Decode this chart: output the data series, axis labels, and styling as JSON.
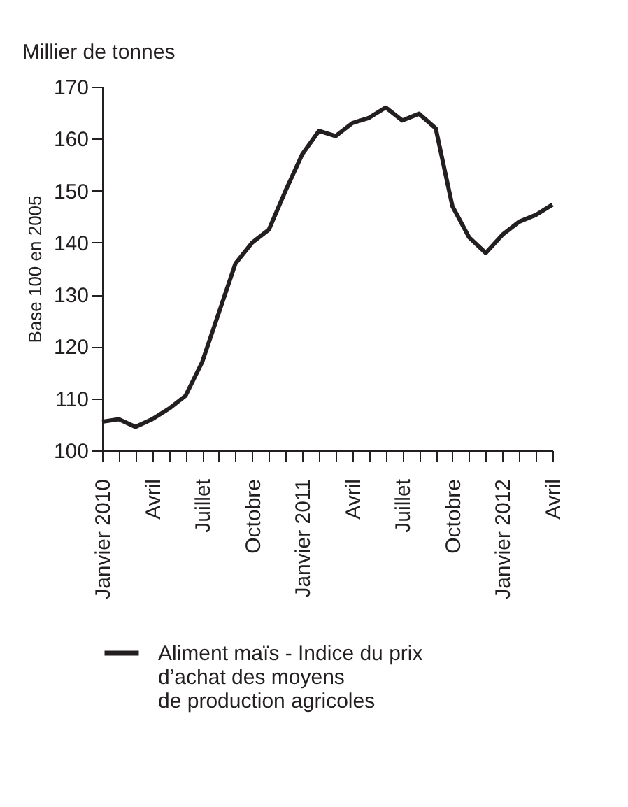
{
  "chart_data": {
    "type": "line",
    "title": "Millier de tonnes",
    "ylabel": "Base 100 en 2005",
    "categories": [
      "Janvier 2010",
      null,
      null,
      "Avril",
      null,
      null,
      "Juillet",
      null,
      null,
      "Octobre",
      null,
      null,
      "Janvier 2011",
      null,
      null,
      "Avril",
      null,
      null,
      "Juillet",
      null,
      null,
      "Octobre",
      null,
      null,
      "Janvier 2012",
      null,
      null,
      "Avril"
    ],
    "series": [
      {
        "name": "Aliment maïs - Indice du prix\nd’achat des moyens\nde production agricoles",
        "color": "#231f20",
        "values": [
          105.5,
          106,
          104.5,
          106,
          108,
          110.5,
          117,
          126.5,
          136,
          140,
          142.5,
          150,
          157,
          161.5,
          160.5,
          163,
          164,
          166,
          163.5,
          164.8,
          162,
          147,
          141,
          138,
          141.5,
          144,
          145.3,
          147.3
        ]
      }
    ],
    "ylim": [
      100,
      170
    ],
    "yticks": [
      100,
      110,
      120,
      130,
      140,
      150,
      160,
      170
    ],
    "grid": false,
    "legend": "bottom",
    "marker": "none",
    "line_style": "solid"
  }
}
